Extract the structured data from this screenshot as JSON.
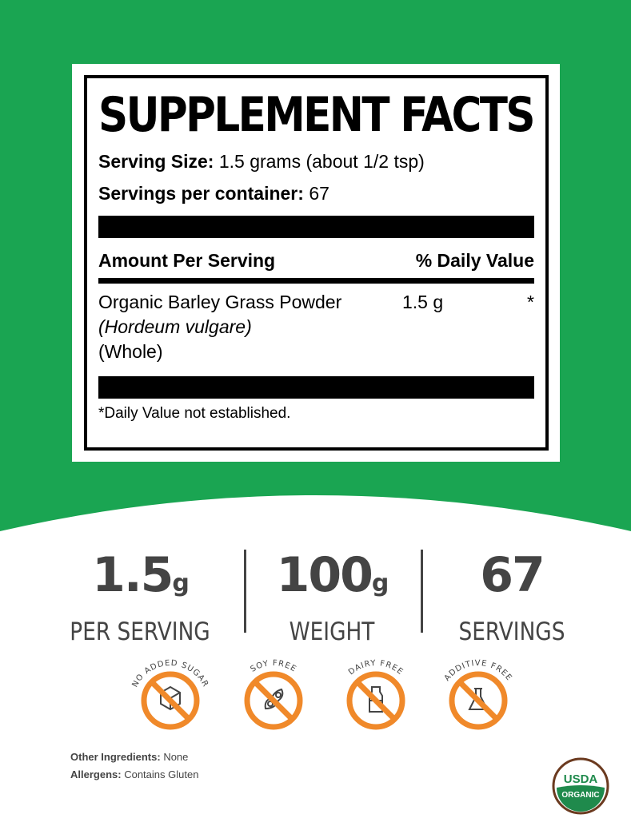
{
  "label": {
    "title": "SUPPLEMENT FACTS",
    "serving_size_label": "Serving Size:",
    "serving_size_value": "1.5 grams (about 1/2 tsp)",
    "servings_label": "Servings per container:",
    "servings_value": "67",
    "amount_header": "Amount Per Serving",
    "dv_header": "% Daily Value",
    "ingredient_name": "Organic Barley Grass Powder",
    "ingredient_latin": "(Hordeum vulgare)",
    "ingredient_part": "(Whole)",
    "ingredient_amount": "1.5 g",
    "ingredient_dv": "*",
    "footnote": "*Daily Value not established."
  },
  "stats": [
    {
      "value": "1.5",
      "unit": "g",
      "label": "PER SERVING"
    },
    {
      "value": "100",
      "unit": "g",
      "label": "WEIGHT"
    },
    {
      "value": "67",
      "unit": "",
      "label": "SERVINGS"
    }
  ],
  "badges": [
    {
      "text": "NO ADDED SUGAR",
      "icon": "sugar-cube-icon"
    },
    {
      "text": "SOY FREE",
      "icon": "soybean-icon"
    },
    {
      "text": "DAIRY FREE",
      "icon": "milk-bottle-icon"
    },
    {
      "text": "ADDITIVE FREE",
      "icon": "flask-icon"
    }
  ],
  "other_ingredients_label": "Other Ingredients:",
  "other_ingredients_value": "None",
  "allergens_label": "Allergens:",
  "allergens_value": "Contains Gluten",
  "usda": {
    "top": "USDA",
    "bottom": "ORGANIC"
  },
  "colors": {
    "green": "#1aa552",
    "orange": "#f0892a",
    "usda_green": "#1f8a4c",
    "usda_brown": "#6b3a1f"
  }
}
